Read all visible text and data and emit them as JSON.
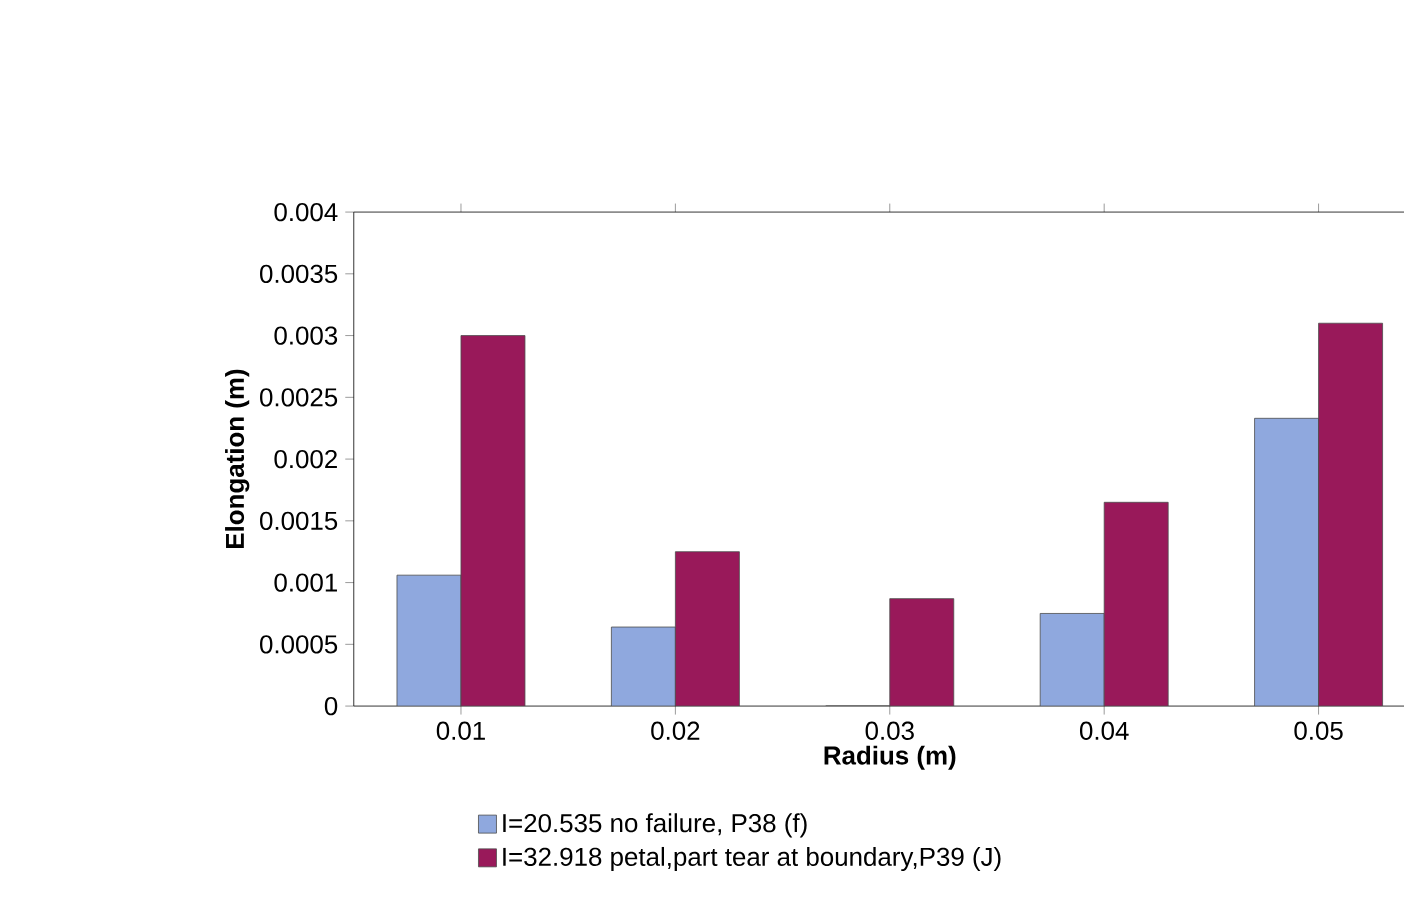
{
  "chart_data": {
    "type": "bar",
    "xlabel": "Radius (m)",
    "ylabel": "Elongation (m)",
    "categories": [
      "0.01",
      "0.02",
      "0.03",
      "0.04",
      "0.05"
    ],
    "series": [
      {
        "name": "I=20.535 no failure, P38 (f)",
        "color": "#8fa8de",
        "values": [
          0.00106,
          0.00064,
          0,
          0.00075,
          0.00233
        ]
      },
      {
        "name": "I=32.918 petal,part tear at  boundary,P39 (J)",
        "color": "#99195a",
        "values": [
          0.003,
          0.00125,
          0.00087,
          0.00165,
          0.0031
        ]
      }
    ],
    "ylim": [
      0,
      0.004
    ],
    "yticks": [
      0,
      0.0005,
      0.001,
      0.0015,
      0.002,
      0.0025,
      0.003,
      0.0035,
      0.004
    ],
    "grid": false,
    "legend": "bottom"
  }
}
